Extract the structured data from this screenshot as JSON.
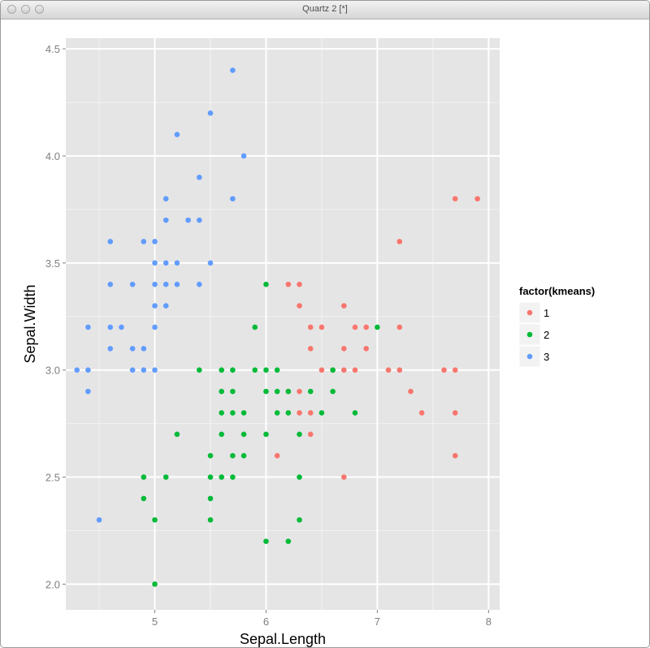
{
  "window": {
    "title": "Quartz 2 [*]"
  },
  "chart_data": {
    "type": "scatter",
    "xlabel": "Sepal.Length",
    "ylabel": "Sepal.Width",
    "xlim": [
      4.2,
      8.1
    ],
    "ylim": [
      1.88,
      4.55
    ],
    "xticks": [
      5,
      6,
      7,
      8
    ],
    "yticks": [
      2.0,
      2.5,
      3.0,
      3.5,
      4.0,
      4.5
    ],
    "ytick_labels": [
      "2.0",
      "2.5",
      "3.0",
      "3.5",
      "4.0",
      "4.5"
    ],
    "grid": true,
    "legend": {
      "title": "factor(kmeans)",
      "position": "right",
      "entries": [
        {
          "label": "1",
          "color": "#F8766D"
        },
        {
          "label": "2",
          "color": "#00BA38"
        },
        {
          "label": "3",
          "color": "#619CFF"
        }
      ]
    },
    "series": [
      {
        "name": "1",
        "color": "#F8766D",
        "points": [
          [
            6.2,
            3.4
          ],
          [
            6.3,
            3.4
          ],
          [
            6.3,
            3.3
          ],
          [
            6.4,
            3.2
          ],
          [
            6.5,
            3.2
          ],
          [
            6.4,
            3.1
          ],
          [
            6.5,
            3.0
          ],
          [
            6.7,
            3.3
          ],
          [
            6.7,
            3.1
          ],
          [
            6.7,
            3.0
          ],
          [
            6.8,
            3.2
          ],
          [
            6.8,
            3.0
          ],
          [
            6.9,
            3.2
          ],
          [
            6.9,
            3.1
          ],
          [
            7.1,
            3.0
          ],
          [
            7.2,
            3.6
          ],
          [
            7.2,
            3.2
          ],
          [
            7.2,
            3.0
          ],
          [
            7.3,
            2.9
          ],
          [
            7.4,
            2.8
          ],
          [
            7.6,
            3.0
          ],
          [
            7.7,
            3.8
          ],
          [
            7.7,
            3.0
          ],
          [
            7.7,
            2.8
          ],
          [
            7.7,
            2.6
          ],
          [
            7.9,
            3.8
          ],
          [
            6.3,
            2.9
          ],
          [
            6.4,
            2.8
          ],
          [
            6.4,
            2.7
          ],
          [
            6.3,
            2.8
          ],
          [
            6.1,
            2.6
          ],
          [
            6.7,
            2.5
          ],
          [
            6.6,
            3.0
          ],
          [
            6.2,
            2.9
          ]
        ]
      },
      {
        "name": "2",
        "color": "#00BA38",
        "points": [
          [
            4.9,
            2.5
          ],
          [
            4.9,
            2.4
          ],
          [
            5.0,
            2.3
          ],
          [
            5.0,
            2.0
          ],
          [
            5.1,
            2.5
          ],
          [
            5.2,
            2.7
          ],
          [
            5.4,
            3.0
          ],
          [
            5.5,
            2.6
          ],
          [
            5.5,
            2.5
          ],
          [
            5.5,
            2.4
          ],
          [
            5.5,
            2.3
          ],
          [
            5.6,
            3.0
          ],
          [
            5.6,
            2.9
          ],
          [
            5.6,
            2.8
          ],
          [
            5.6,
            2.7
          ],
          [
            5.6,
            2.5
          ],
          [
            5.7,
            3.0
          ],
          [
            5.7,
            2.9
          ],
          [
            5.7,
            2.8
          ],
          [
            5.7,
            2.6
          ],
          [
            5.7,
            2.5
          ],
          [
            5.8,
            2.8
          ],
          [
            5.8,
            2.7
          ],
          [
            5.8,
            2.6
          ],
          [
            5.9,
            3.2
          ],
          [
            5.9,
            3.0
          ],
          [
            6.0,
            3.4
          ],
          [
            6.0,
            3.0
          ],
          [
            6.0,
            2.9
          ],
          [
            6.0,
            2.7
          ],
          [
            6.0,
            2.2
          ],
          [
            6.1,
            3.0
          ],
          [
            6.1,
            2.9
          ],
          [
            6.1,
            2.8
          ],
          [
            6.2,
            2.9
          ],
          [
            6.2,
            2.8
          ],
          [
            6.2,
            2.2
          ],
          [
            6.3,
            2.7
          ],
          [
            6.3,
            2.5
          ],
          [
            6.3,
            2.3
          ],
          [
            6.4,
            2.9
          ],
          [
            6.5,
            2.8
          ],
          [
            6.6,
            3.0
          ],
          [
            6.6,
            2.9
          ],
          [
            6.8,
            2.8
          ],
          [
            7.0,
            3.2
          ]
        ]
      },
      {
        "name": "3",
        "color": "#619CFF",
        "points": [
          [
            4.3,
            3.0
          ],
          [
            4.4,
            3.2
          ],
          [
            4.4,
            3.0
          ],
          [
            4.4,
            2.9
          ],
          [
            4.5,
            2.3
          ],
          [
            4.6,
            3.6
          ],
          [
            4.6,
            3.4
          ],
          [
            4.6,
            3.2
          ],
          [
            4.6,
            3.1
          ],
          [
            4.7,
            3.2
          ],
          [
            4.8,
            3.4
          ],
          [
            4.8,
            3.1
          ],
          [
            4.8,
            3.0
          ],
          [
            4.9,
            3.6
          ],
          [
            4.9,
            3.1
          ],
          [
            4.9,
            3.0
          ],
          [
            5.0,
            3.6
          ],
          [
            5.0,
            3.5
          ],
          [
            5.0,
            3.4
          ],
          [
            5.0,
            3.3
          ],
          [
            5.0,
            3.2
          ],
          [
            5.0,
            3.0
          ],
          [
            5.1,
            3.8
          ],
          [
            5.1,
            3.7
          ],
          [
            5.1,
            3.5
          ],
          [
            5.1,
            3.4
          ],
          [
            5.1,
            3.3
          ],
          [
            5.2,
            4.1
          ],
          [
            5.2,
            3.5
          ],
          [
            5.2,
            3.4
          ],
          [
            5.3,
            3.7
          ],
          [
            5.4,
            3.9
          ],
          [
            5.4,
            3.7
          ],
          [
            5.4,
            3.4
          ],
          [
            5.5,
            4.2
          ],
          [
            5.5,
            3.5
          ],
          [
            5.7,
            4.4
          ],
          [
            5.7,
            3.8
          ],
          [
            5.8,
            4.0
          ]
        ]
      }
    ]
  }
}
